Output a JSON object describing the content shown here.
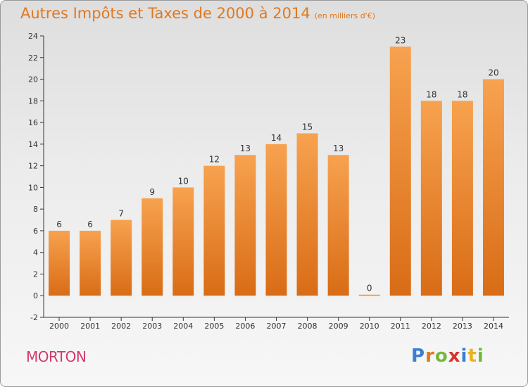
{
  "header": {
    "title": "Autres Impôts et Taxes de 2000 à 2014",
    "unit": "(en milliers d'€)"
  },
  "footer": {
    "commune": "MORTON",
    "logo_letters": [
      {
        "ch": "P",
        "color": "#3a7fd1"
      },
      {
        "ch": "r",
        "color": "#e0781f"
      },
      {
        "ch": "o",
        "color": "#74b83a"
      },
      {
        "ch": "x",
        "color": "#d6332e"
      },
      {
        "ch": "i",
        "color": "#3a7fd1"
      },
      {
        "ch": "t",
        "color": "#e9b21f"
      },
      {
        "ch": "i",
        "color": "#74b83a"
      }
    ]
  },
  "colors": {
    "bar_top": "#f7a24f",
    "bar_bottom": "#d96c16",
    "title": "#e0781f",
    "commune": "#d03a6a"
  },
  "chart_data": {
    "type": "bar",
    "categories": [
      "2000",
      "2001",
      "2002",
      "2003",
      "2004",
      "2005",
      "2006",
      "2007",
      "2008",
      "2009",
      "2010",
      "2011",
      "2012",
      "2013",
      "2014"
    ],
    "values": [
      6,
      6,
      7,
      9,
      10,
      12,
      13,
      14,
      15,
      13,
      0,
      23,
      18,
      18,
      20
    ],
    "ylim": [
      -2,
      24
    ],
    "yticks": [
      -2,
      0,
      2,
      4,
      6,
      8,
      10,
      12,
      14,
      16,
      18,
      20,
      22,
      24
    ],
    "grid": false
  }
}
